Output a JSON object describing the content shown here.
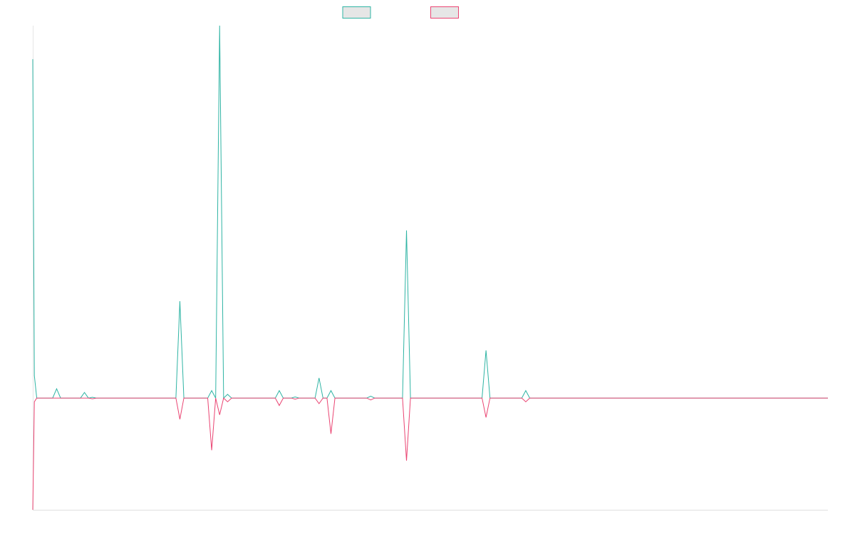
{
  "chart_data": {
    "type": "line",
    "x": [
      0,
      0.4,
      1,
      5,
      6,
      7,
      12,
      13,
      14,
      15,
      16,
      36,
      37,
      38,
      44,
      45,
      46,
      47,
      48,
      49,
      50,
      61,
      62,
      63,
      65,
      66,
      67,
      71,
      72,
      73,
      74,
      75,
      76,
      84,
      85,
      86,
      93,
      94,
      95,
      113,
      114,
      115,
      123,
      124,
      125,
      200
    ],
    "series": [
      {
        "color": "#2fb4a4",
        "values": [
          91,
          6,
          0,
          0,
          2.5,
          0,
          0,
          1.5,
          0,
          0.2,
          0,
          0,
          26,
          0,
          0,
          2,
          0,
          100,
          0,
          1,
          0,
          0,
          2,
          0,
          0,
          0.3,
          0,
          0,
          5.4,
          0,
          0,
          2,
          0,
          0,
          0.5,
          0,
          0,
          45,
          0,
          0,
          12.8,
          0,
          0,
          2,
          0,
          0
        ]
      },
      {
        "color": "#ea4472",
        "values": [
          -30,
          -1,
          0,
          0,
          0,
          0,
          0,
          0,
          0,
          -0.2,
          0,
          0,
          -5.7,
          0,
          0,
          -14,
          0,
          -4.5,
          0,
          -1,
          0,
          0,
          -2,
          0,
          0,
          -0.3,
          0,
          0,
          -1.5,
          0,
          0,
          -9.6,
          0,
          0,
          -0.5,
          0,
          0,
          -16.8,
          0,
          0,
          -5.2,
          0,
          0,
          -1,
          0,
          0
        ]
      }
    ],
    "xlim": [
      0,
      200
    ],
    "ylim": [
      -30,
      100
    ]
  }
}
